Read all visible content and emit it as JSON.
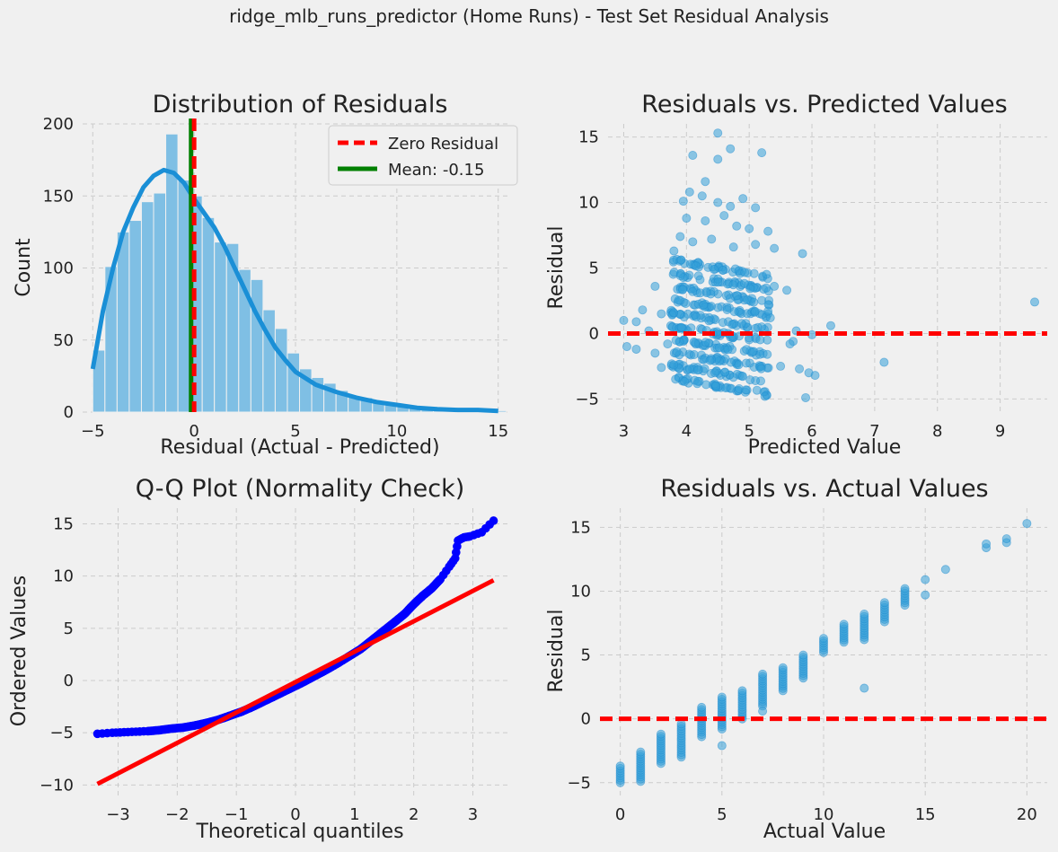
{
  "figure": {
    "suptitle": "ridge_mlb_runs_predictor (Home Runs) - Test Set Residual Analysis"
  },
  "colors": {
    "background": "#f0f0f0",
    "hist": "#7fbfe4",
    "kde": "#1a8fd6",
    "points": "#35a0d8",
    "zero_line": "#ff0000",
    "mean_line": "#008000",
    "qq_points": "#0000ff",
    "qq_line": "#ff0000"
  },
  "chart_data": [
    {
      "id": "hist",
      "type": "bar",
      "title": "Distribution of Residuals",
      "xlabel": "Residual (Actual - Predicted)",
      "ylabel": "Count",
      "xlim": [
        -5.5,
        15.5
      ],
      "ylim": [
        0,
        200
      ],
      "xticks": [
        -5,
        0,
        5,
        10,
        15
      ],
      "yticks": [
        0,
        50,
        100,
        150,
        200
      ],
      "grid": true,
      "bin_edges": [
        -5.0,
        -4.4,
        -3.8,
        -3.2,
        -2.6,
        -2.0,
        -1.4,
        -0.8,
        -0.2,
        0.4,
        1.0,
        1.6,
        2.2,
        2.8,
        3.4,
        4.0,
        4.6,
        5.2,
        5.8,
        6.4,
        7.0,
        7.6,
        8.2,
        8.8,
        9.4,
        10.0,
        10.6,
        11.2,
        11.8,
        12.4,
        13.0,
        13.6,
        14.2,
        14.8,
        15.4
      ],
      "counts": [
        43,
        101,
        125,
        133,
        146,
        152,
        193,
        161,
        150,
        135,
        118,
        117,
        99,
        92,
        71,
        58,
        41,
        30,
        24,
        20,
        15,
        11,
        10,
        8,
        6,
        5,
        3,
        3,
        2,
        2,
        1,
        1,
        1,
        1
      ],
      "kde": {
        "x": [
          -5.0,
          -4.5,
          -4.0,
          -3.5,
          -3.0,
          -2.5,
          -2.0,
          -1.5,
          -1.0,
          -0.5,
          0.0,
          0.5,
          1.0,
          1.5,
          2.0,
          2.5,
          3.0,
          3.5,
          4.0,
          4.5,
          5.0,
          6.0,
          7.0,
          8.0,
          9.0,
          10.0,
          11.0,
          12.0,
          13.0,
          14.0,
          15.0
        ],
        "y": [
          30,
          70,
          100,
          125,
          142,
          156,
          164,
          168,
          166,
          159,
          148,
          138,
          128,
          115,
          100,
          85,
          70,
          57,
          45,
          36,
          28,
          19,
          14,
          10,
          7,
          5,
          3,
          2,
          1.5,
          1.5,
          0.8
        ]
      },
      "vlines": [
        {
          "x": 0,
          "label": "Zero Residual",
          "color": "#ff0000",
          "style": "dashed"
        },
        {
          "x": -0.15,
          "label": "Mean: -0.15",
          "color": "#008000",
          "style": "solid"
        }
      ],
      "legend": "top-right"
    },
    {
      "id": "resid-pred",
      "type": "scatter",
      "title": "Residuals vs. Predicted Values",
      "xlabel": "Predicted Value",
      "ylabel": "Residual",
      "xlim": [
        2.75,
        9.75
      ],
      "ylim": [
        -6,
        16
      ],
      "xticks": [
        3,
        4,
        5,
        6,
        7,
        8,
        9
      ],
      "yticks": [
        -5,
        0,
        5,
        10,
        15
      ],
      "grid": true,
      "hline": {
        "y": 0,
        "color": "#ff0000",
        "style": "dashed"
      },
      "points": [
        [
          4.5,
          15.3
        ],
        [
          4.7,
          14.1
        ],
        [
          5.2,
          13.8
        ],
        [
          4.1,
          13.6
        ],
        [
          4.5,
          13.3
        ],
        [
          4.3,
          11.6
        ],
        [
          3.95,
          10.1
        ],
        [
          4.05,
          10.8
        ],
        [
          4.25,
          10.5
        ],
        [
          4.5,
          10.0
        ],
        [
          4.7,
          9.7
        ],
        [
          4.9,
          10.3
        ],
        [
          5.1,
          9.6
        ],
        [
          4.0,
          8.8
        ],
        [
          4.3,
          8.6
        ],
        [
          4.6,
          9.0
        ],
        [
          4.8,
          8.2
        ],
        [
          5.0,
          8.0
        ],
        [
          5.3,
          7.8
        ],
        [
          3.9,
          7.4
        ],
        [
          4.1,
          7.0
        ],
        [
          4.4,
          7.2
        ],
        [
          4.75,
          6.6
        ],
        [
          5.1,
          6.8
        ],
        [
          5.4,
          6.5
        ],
        [
          5.85,
          6.1
        ],
        [
          3.8,
          6.3
        ],
        [
          3.5,
          3.6
        ],
        [
          3.6,
          1.5
        ],
        [
          3.3,
          1.8
        ],
        [
          3.0,
          1.0
        ],
        [
          3.2,
          0.9
        ],
        [
          3.4,
          0.2
        ],
        [
          3.05,
          -1.0
        ],
        [
          3.2,
          -1.2
        ],
        [
          3.5,
          -1.5
        ],
        [
          3.6,
          -2.6
        ],
        [
          3.7,
          -0.8
        ],
        [
          5.6,
          3.3
        ],
        [
          5.75,
          0.2
        ],
        [
          6.0,
          -0.1
        ],
        [
          6.3,
          0.6
        ],
        [
          5.7,
          -0.6
        ],
        [
          5.5,
          -2.5
        ],
        [
          5.8,
          -2.7
        ],
        [
          5.95,
          -3.0
        ],
        [
          6.05,
          -3.2
        ],
        [
          7.15,
          -2.2
        ],
        [
          9.55,
          2.4
        ],
        [
          5.9,
          -4.9
        ],
        [
          5.25,
          -4.8
        ],
        [
          5.65,
          -0.8
        ],
        [
          5.4,
          3.6
        ],
        [
          5.3,
          1.7
        ]
      ],
      "band_cloud": {
        "band_levels": [
          -4,
          -3,
          -2,
          -1,
          0,
          1,
          2,
          3,
          4,
          5
        ],
        "predicted_range": [
          3.75,
          5.35
        ]
      }
    },
    {
      "id": "qq",
      "type": "scatter",
      "title": "Q-Q Plot (Normality Check)",
      "xlabel": "Theoretical quantiles",
      "ylabel": "Ordered Values",
      "xlim": [
        -3.6,
        3.6
      ],
      "ylim": [
        -11,
        16.5
      ],
      "xticks": [
        -3,
        -2,
        -1,
        0,
        1,
        2,
        3
      ],
      "yticks": [
        -10,
        -5,
        0,
        5,
        10,
        15
      ],
      "grid": true,
      "fit_line": {
        "x": [
          -3.35,
          3.35
        ],
        "y": [
          -9.9,
          9.6
        ],
        "color": "#ff0000"
      },
      "quantile_points": [
        [
          -3.35,
          -5.1
        ],
        [
          -3.1,
          -5.0
        ],
        [
          -2.9,
          -4.95
        ],
        [
          -2.7,
          -4.9
        ],
        [
          -2.5,
          -4.85
        ],
        [
          -2.3,
          -4.75
        ],
        [
          -2.1,
          -4.6
        ],
        [
          -1.9,
          -4.5
        ],
        [
          -1.7,
          -4.3
        ],
        [
          -1.5,
          -4.05
        ],
        [
          -1.3,
          -3.75
        ],
        [
          -1.1,
          -3.35
        ],
        [
          -0.9,
          -2.95
        ],
        [
          -0.7,
          -2.45
        ],
        [
          -0.5,
          -1.9
        ],
        [
          -0.3,
          -1.35
        ],
        [
          -0.1,
          -0.8
        ],
        [
          0.1,
          -0.25
        ],
        [
          0.3,
          0.35
        ],
        [
          0.5,
          0.95
        ],
        [
          0.7,
          1.6
        ],
        [
          0.9,
          2.3
        ],
        [
          1.1,
          3.0
        ],
        [
          1.3,
          3.9
        ],
        [
          1.5,
          4.8
        ],
        [
          1.7,
          5.7
        ],
        [
          1.85,
          6.4
        ],
        [
          2.0,
          7.3
        ],
        [
          2.15,
          8.1
        ],
        [
          2.3,
          8.8
        ],
        [
          2.45,
          9.7
        ],
        [
          2.6,
          10.9
        ],
        [
          2.7,
          11.7
        ],
        [
          2.75,
          13.4
        ],
        [
          2.85,
          13.7
        ],
        [
          2.95,
          13.8
        ],
        [
          3.15,
          14.2
        ],
        [
          3.35,
          15.3
        ]
      ]
    },
    {
      "id": "resid-actual",
      "type": "scatter",
      "title": "Residuals vs. Actual Values",
      "xlabel": "Actual Value",
      "ylabel": "Residual",
      "xlim": [
        -1,
        21
      ],
      "ylim": [
        -6,
        16.5
      ],
      "xticks": [
        0,
        5,
        10,
        15,
        20
      ],
      "yticks": [
        -5,
        0,
        5,
        10,
        15
      ],
      "grid": true,
      "hline": {
        "y": 0,
        "color": "#ff0000",
        "style": "dashed"
      },
      "columns": [
        {
          "x": 0,
          "ymin": -5.0,
          "ymax": -3.7
        },
        {
          "x": 1,
          "ymin": -4.9,
          "ymax": -2.6
        },
        {
          "x": 2,
          "ymin": -3.5,
          "ymax": -1.2
        },
        {
          "x": 3,
          "ymin": -3.0,
          "ymax": -0.4
        },
        {
          "x": 4,
          "ymin": -1.4,
          "ymax": 0.9
        },
        {
          "x": 5,
          "ymin": -0.8,
          "ymax": 1.7
        },
        {
          "x": 6,
          "ymin": 0.0,
          "ymax": 2.2
        },
        {
          "x": 7,
          "ymin": 1.0,
          "ymax": 3.5
        },
        {
          "x": 8,
          "ymin": 2.2,
          "ymax": 4.0
        },
        {
          "x": 9,
          "ymin": 3.2,
          "ymax": 5.0
        },
        {
          "x": 10,
          "ymin": 5.2,
          "ymax": 6.3
        },
        {
          "x": 11,
          "ymin": 6.0,
          "ymax": 7.4
        },
        {
          "x": 12,
          "ymin": 6.2,
          "ymax": 8.2
        },
        {
          "x": 13,
          "ymin": 7.6,
          "ymax": 9.1
        },
        {
          "x": 14,
          "ymin": 8.9,
          "ymax": 10.2
        }
      ],
      "points": [
        [
          5,
          -2.1
        ],
        [
          7,
          0.6
        ],
        [
          12,
          2.4
        ],
        [
          15,
          9.7
        ],
        [
          15,
          10.9
        ],
        [
          16,
          11.7
        ],
        [
          18,
          13.4
        ],
        [
          18,
          13.7
        ],
        [
          19,
          13.8
        ],
        [
          19,
          14.1
        ],
        [
          20,
          15.3
        ]
      ]
    }
  ]
}
